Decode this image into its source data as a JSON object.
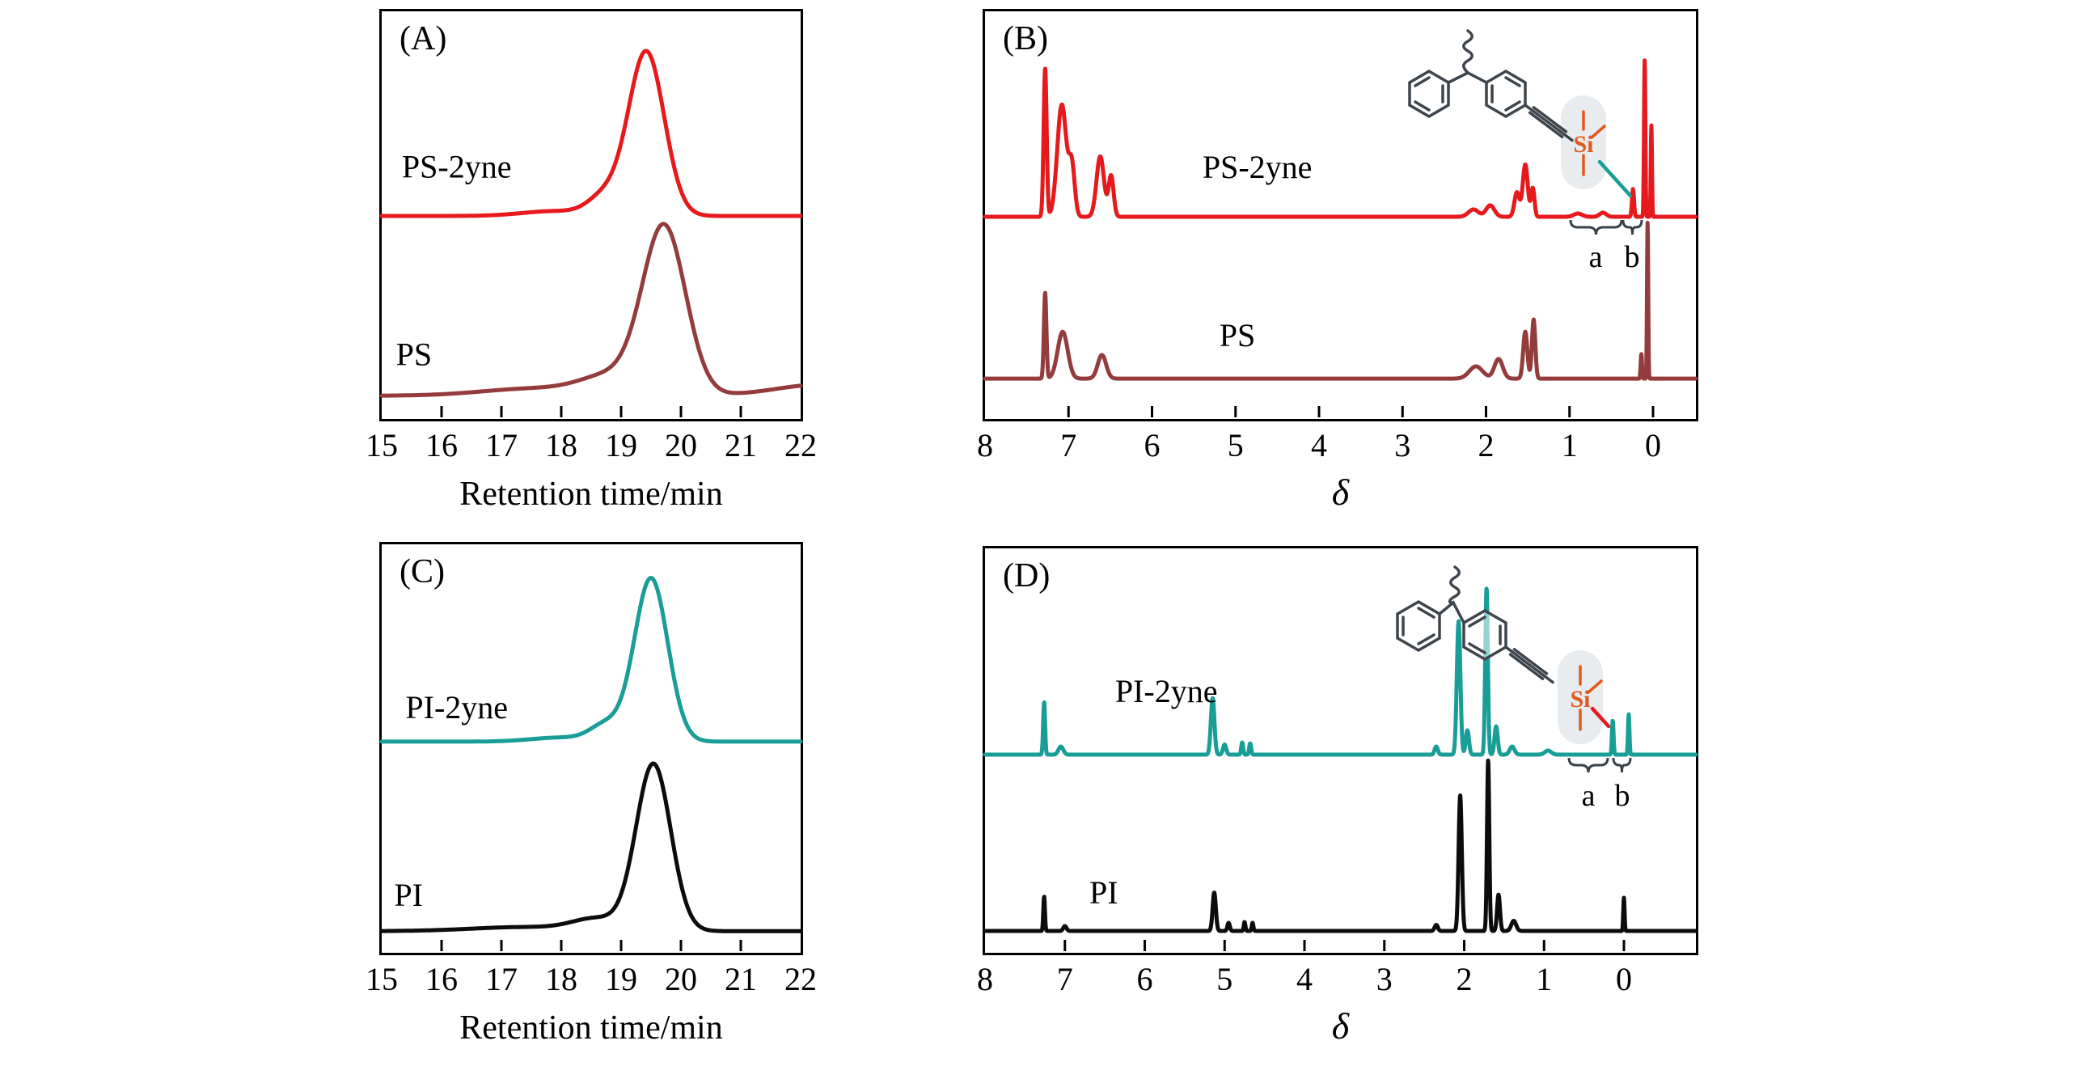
{
  "figure": {
    "description": "GPC traces and 1H NMR spectra of PS, PS-2yne, PI and PI-2yne",
    "background": "#ffffff"
  },
  "chart_data": [
    {
      "panel": "A",
      "letter": "(A)",
      "type": "line",
      "title": "",
      "xlabel": "Retention time/min",
      "ylabel": "",
      "x_range": [
        15,
        22
      ],
      "axis": {
        "title": "Retention time/min",
        "italic": false,
        "tick_marks": [
          16,
          17,
          18,
          19,
          20,
          21
        ],
        "tick_labels": [
          {
            "v": 15,
            "label": "15"
          },
          {
            "v": 16,
            "label": "16"
          },
          {
            "v": 17,
            "label": "17"
          },
          {
            "v": 18,
            "label": "18"
          },
          {
            "v": 19,
            "label": "19"
          },
          {
            "v": 20,
            "label": "20"
          },
          {
            "v": 21,
            "label": "21"
          },
          {
            "v": 22,
            "label": "22"
          }
        ]
      },
      "series": [
        {
          "name": "PS-2yne",
          "color": "#e6191c",
          "baseline": 0.502,
          "label_pos": [
            0.179,
            0.408
          ],
          "peaks": [
            [
              19.42,
              0.403,
              0.3
            ],
            [
              18.72,
              0.045,
              0.27
            ],
            [
              17.9,
              0.012,
              0.55
            ]
          ],
          "peak_retention_min": 19.4
        },
        {
          "name": "PS",
          "color": "#943b3b",
          "baseline": 0.943,
          "label_pos": [
            0.077,
            0.868
          ],
          "peaks": [
            [
              19.72,
              0.41,
              0.36
            ],
            [
              18.85,
              0.045,
              0.5
            ],
            [
              17.6,
              0.018,
              0.9
            ],
            [
              22.4,
              0.028,
              0.8
            ]
          ],
          "peak_retention_min": 19.7
        }
      ]
    },
    {
      "panel": "B",
      "letter": "(B)",
      "type": "line",
      "title": "",
      "xlabel": "δ",
      "ylabel": "",
      "x_range": [
        8,
        -0.51
      ],
      "x_reversed": true,
      "axis": {
        "title": "δ",
        "italic": true,
        "tick_marks": [
          7,
          6,
          5,
          4,
          3,
          2,
          1,
          0
        ],
        "tick_labels": [
          {
            "v": 8,
            "label": "8"
          },
          {
            "v": 7,
            "label": "7"
          },
          {
            "v": 6,
            "label": "6"
          },
          {
            "v": 5,
            "label": "5"
          },
          {
            "v": 4,
            "label": "4"
          },
          {
            "v": 3,
            "label": "3"
          },
          {
            "v": 2,
            "label": "2"
          },
          {
            "v": 1,
            "label": "1"
          },
          {
            "v": 0,
            "label": "0"
          }
        ]
      },
      "series": [
        {
          "name": "PS-2yne",
          "color": "#e6191c",
          "baseline": 0.504,
          "label_pos": [
            0.383,
            0.409
          ],
          "peaks": [
            [
              7.28,
              0.363,
              0.018
            ],
            [
              7.08,
              0.275,
              0.055
            ],
            [
              6.96,
              0.12,
              0.035
            ],
            [
              6.62,
              0.148,
              0.045
            ],
            [
              6.49,
              0.1,
              0.03
            ],
            [
              2.15,
              0.018,
              0.06
            ],
            [
              1.95,
              0.028,
              0.05
            ],
            [
              1.63,
              0.06,
              0.03
            ],
            [
              1.53,
              0.128,
              0.03
            ],
            [
              1.44,
              0.07,
              0.02
            ],
            [
              0.9,
              0.008,
              0.05
            ],
            [
              0.6,
              0.01,
              0.04
            ],
            [
              0.24,
              0.068,
              0.012
            ],
            [
              0.1,
              0.385,
              0.008
            ],
            [
              0.02,
              0.225,
              0.007
            ]
          ]
        },
        {
          "name": "PS",
          "color": "#943b3b",
          "baseline": 0.901,
          "label_pos": [
            0.355,
            0.821
          ],
          "peaks": [
            [
              7.28,
              0.21,
              0.015
            ],
            [
              7.07,
              0.115,
              0.06
            ],
            [
              6.6,
              0.058,
              0.05
            ],
            [
              2.12,
              0.03,
              0.08
            ],
            [
              1.85,
              0.048,
              0.05
            ],
            [
              1.53,
              0.115,
              0.025
            ],
            [
              1.43,
              0.145,
              0.02
            ],
            [
              0.14,
              0.06,
              0.008
            ],
            [
              0.065,
              0.385,
              0.007
            ]
          ]
        }
      ],
      "inset": {
        "name": "polystyrene chain end with trimethylsilyl-alkyne group",
        "atom_label": "Si",
        "annotations": [
          "a",
          "b"
        ],
        "annotation_ranges_delta": {
          "a": [
            1.0,
            0.4
          ],
          "b": [
            0.35,
            0.15
          ]
        },
        "pointer_color": "#189e97",
        "highlight_color": "#e7eaed"
      }
    },
    {
      "panel": "C",
      "letter": "(C)",
      "type": "line",
      "title": "",
      "xlabel": "Retention time/min",
      "ylabel": "",
      "x_range": [
        15,
        22
      ],
      "axis": {
        "title": "Retention time/min",
        "italic": false,
        "tick_marks": [
          16,
          17,
          18,
          19,
          20,
          21
        ],
        "tick_labels": [
          {
            "v": 15,
            "label": "15"
          },
          {
            "v": 16,
            "label": "16"
          },
          {
            "v": 17,
            "label": "17"
          },
          {
            "v": 18,
            "label": "18"
          },
          {
            "v": 19,
            "label": "19"
          },
          {
            "v": 20,
            "label": "20"
          },
          {
            "v": 21,
            "label": "21"
          },
          {
            "v": 22,
            "label": "22"
          }
        ]
      },
      "series": [
        {
          "name": "PI-2yne",
          "color": "#189e97",
          "baseline": 0.483,
          "label_pos": [
            0.179,
            0.426
          ],
          "peaks": [
            [
              19.5,
              0.4,
              0.28
            ],
            [
              18.75,
              0.04,
              0.26
            ],
            [
              18.0,
              0.01,
              0.5
            ]
          ],
          "peak_retention_min": 19.5
        },
        {
          "name": "PI",
          "color": "#0c0c0c",
          "baseline": 0.947,
          "label_pos": [
            0.064,
            0.885
          ],
          "peaks": [
            [
              19.54,
              0.408,
              0.29
            ],
            [
              18.6,
              0.028,
              0.4
            ],
            [
              17.4,
              0.01,
              0.9
            ]
          ],
          "peak_retention_min": 19.5
        }
      ]
    },
    {
      "panel": "D",
      "letter": "(D)",
      "type": "line",
      "title": "",
      "xlabel": "δ",
      "ylabel": "",
      "x_range": [
        8,
        -0.9
      ],
      "x_reversed": true,
      "axis": {
        "title": "δ",
        "italic": true,
        "tick_marks": [
          7,
          6,
          5,
          4,
          3,
          2,
          1,
          0
        ],
        "tick_labels": [
          {
            "v": 8,
            "label": "8"
          },
          {
            "v": 7,
            "label": "7"
          },
          {
            "v": 6,
            "label": "6"
          },
          {
            "v": 5,
            "label": "5"
          },
          {
            "v": 4,
            "label": "4"
          },
          {
            "v": 3,
            "label": "3"
          },
          {
            "v": 2,
            "label": "2"
          },
          {
            "v": 1,
            "label": "1"
          },
          {
            "v": 0,
            "label": "0"
          }
        ]
      },
      "series": [
        {
          "name": "PI-2yne",
          "color": "#189e97",
          "baseline": 0.51,
          "label_pos": [
            0.255,
            0.38
          ],
          "peaks": [
            [
              7.26,
              0.13,
              0.012
            ],
            [
              7.05,
              0.02,
              0.03
            ],
            [
              5.15,
              0.14,
              0.022
            ],
            [
              5.0,
              0.025,
              0.02
            ],
            [
              4.78,
              0.03,
              0.012
            ],
            [
              4.68,
              0.028,
              0.012
            ],
            [
              2.35,
              0.02,
              0.02
            ],
            [
              2.07,
              0.33,
              0.022
            ],
            [
              1.96,
              0.06,
              0.02
            ],
            [
              1.72,
              0.412,
              0.016
            ],
            [
              1.6,
              0.07,
              0.02
            ],
            [
              1.4,
              0.02,
              0.03
            ],
            [
              0.95,
              0.01,
              0.04
            ],
            [
              0.14,
              0.085,
              0.01
            ],
            [
              -0.06,
              0.1,
              0.009
            ]
          ]
        },
        {
          "name": "PI",
          "color": "#0c0c0c",
          "baseline": 0.946,
          "label_pos": [
            0.167,
            0.878
          ],
          "peaks": [
            [
              7.26,
              0.085,
              0.01
            ],
            [
              7.0,
              0.012,
              0.02
            ],
            [
              5.13,
              0.095,
              0.02
            ],
            [
              4.95,
              0.02,
              0.015
            ],
            [
              4.75,
              0.022,
              0.01
            ],
            [
              4.65,
              0.02,
              0.01
            ],
            [
              2.35,
              0.015,
              0.02
            ],
            [
              2.05,
              0.335,
              0.02
            ],
            [
              1.7,
              0.423,
              0.014
            ],
            [
              1.57,
              0.09,
              0.018
            ],
            [
              1.38,
              0.025,
              0.03
            ],
            [
              0.0,
              0.082,
              0.008
            ]
          ]
        }
      ],
      "inset": {
        "name": "polyisoprene chain end with trimethylsilyl-alkyne group",
        "atom_label": "Si",
        "annotations": [
          "a",
          "b"
        ],
        "annotation_ranges_delta": {
          "a": [
            0.9,
            0.4
          ],
          "b": [
            0.3,
            0.1
          ]
        },
        "pointer_color": "#e6191c",
        "highlight_color": "#e7eaed"
      }
    }
  ]
}
